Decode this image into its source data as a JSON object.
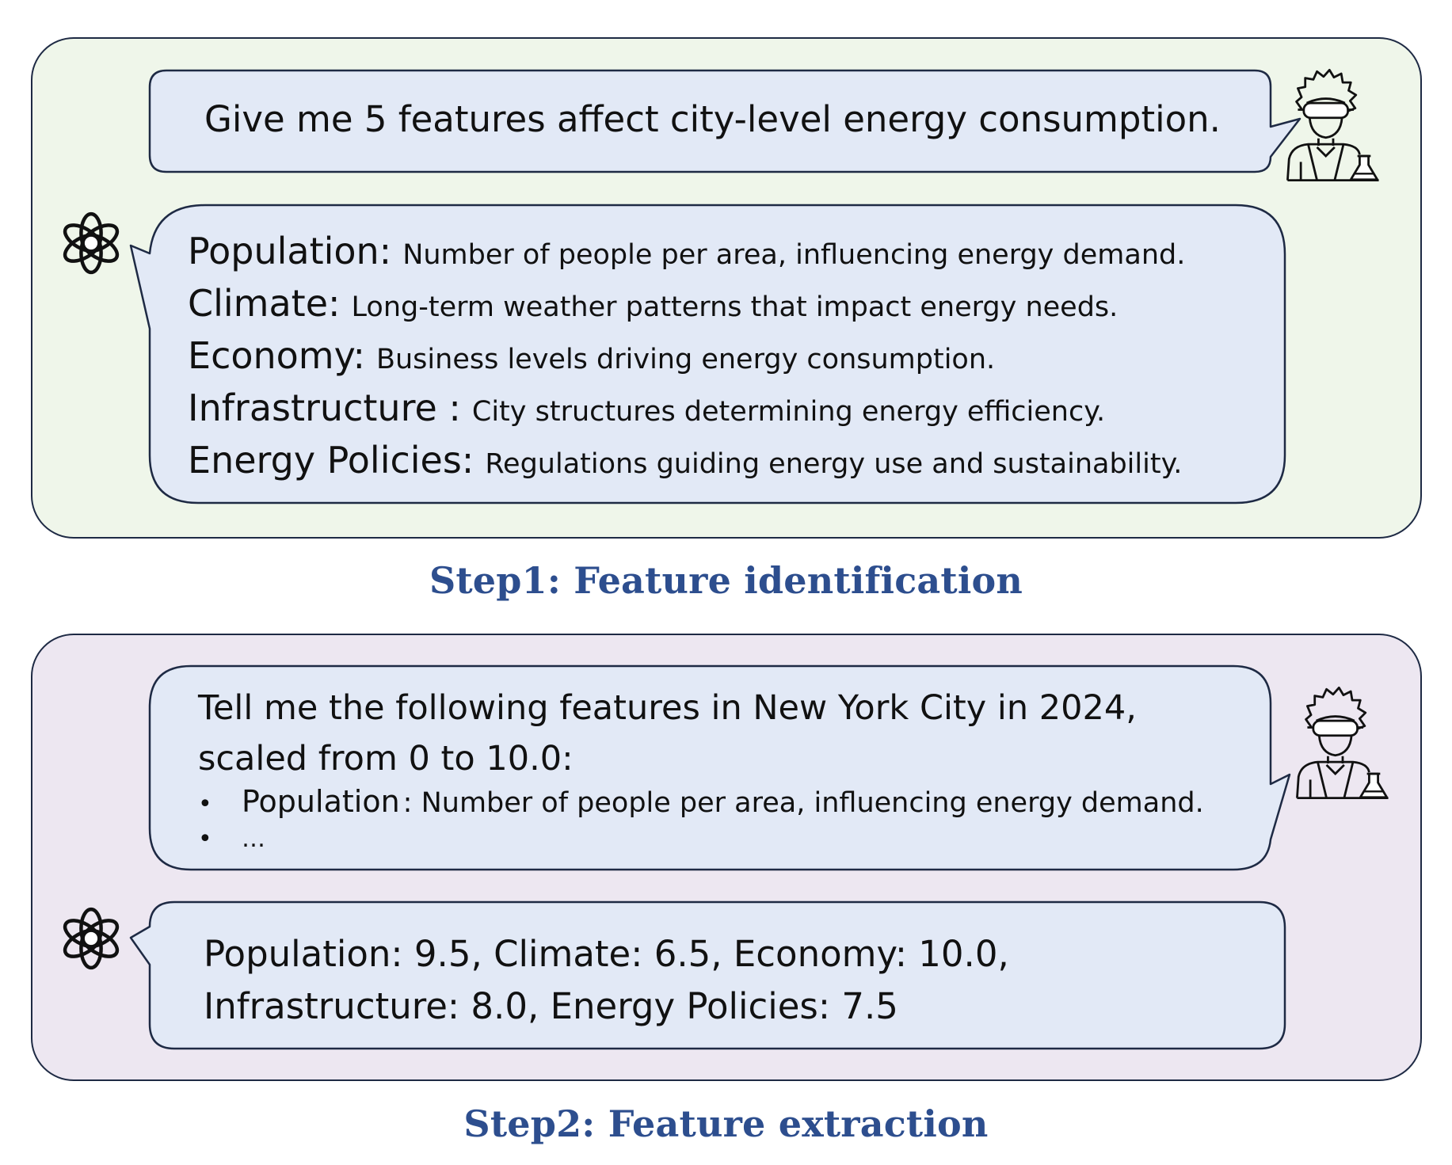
{
  "step1": {
    "title": "Step1: Feature identification",
    "user_prompt": "Give me 5 features affect city-level energy consumption.",
    "features": [
      {
        "name": "Population:",
        "desc": "Number of people per area, influencing energy demand."
      },
      {
        "name": "Climate:",
        "desc": "Long-term weather patterns that impact energy needs."
      },
      {
        "name": "Economy:",
        "desc": "Business levels driving energy consumption."
      },
      {
        "name": "Infrastructure :",
        "desc": "City structures determining energy efficiency."
      },
      {
        "name": "Energy Policies:",
        "desc": "Regulations guiding energy use and sustainability."
      }
    ]
  },
  "step2": {
    "title": "Step2: Feature extraction",
    "user_prompt_line1": "Tell me the following features in New York City in 2024,",
    "user_prompt_line2": "scaled from 0 to 10.0:",
    "bullets": [
      {
        "dot": "•",
        "name": "Population",
        "desc": ": Number of people per area, influencing energy demand."
      },
      {
        "dot": "•",
        "name": "…",
        "desc": ""
      }
    ],
    "answer_line1": "Population: 9.5, Climate: 6.5, Economy: 10.0,",
    "answer_line2": "Infrastructure: 8.0, Energy Policies: 7.5"
  },
  "icons": {
    "user": "scientist-icon",
    "assistant": "openai-logo-icon"
  },
  "colors": {
    "panel1_bg": "#eff6ea",
    "panel2_bg": "#ede7f1",
    "bubble_fill": "#e2e9f6",
    "outline": "#1e2a44",
    "title": "#2d4e8e"
  }
}
